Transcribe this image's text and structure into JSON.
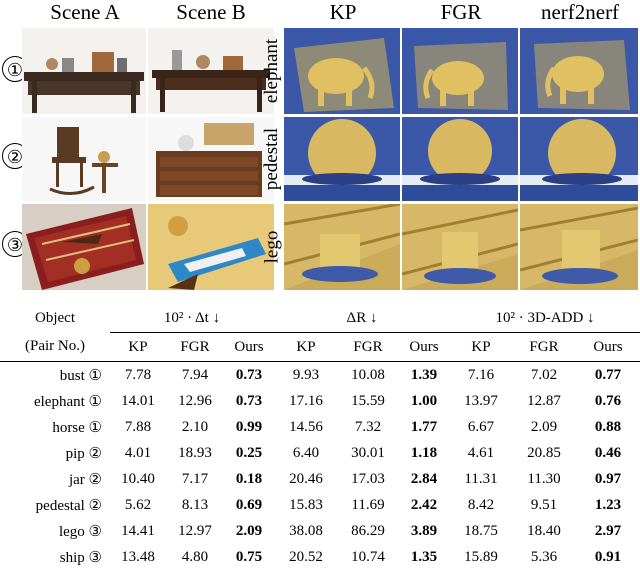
{
  "headers": {
    "scene_a": "Scene A",
    "scene_b": "Scene B",
    "kp": "KP",
    "fgr": "FGR",
    "n2n": "nerf2nerf"
  },
  "row_markers": [
    "①",
    "②",
    "③"
  ],
  "row_labels": [
    "elephant",
    "pedestal",
    "lego"
  ],
  "table": {
    "col_object": "Object",
    "col_pair": "(Pair No.)",
    "group1": "10² · Δt ↓",
    "group2": "ΔR ↓",
    "group3": "10² · 3D-ADD ↓",
    "sub": [
      "KP",
      "FGR",
      "Ours",
      "KP",
      "FGR",
      "Ours",
      "KP",
      "FGR",
      "Ours"
    ],
    "rows": [
      {
        "name": "bust ①",
        "vals": [
          "7.78",
          "7.94",
          "0.73",
          "9.93",
          "10.08",
          "1.39",
          "7.16",
          "7.02",
          "0.77"
        ]
      },
      {
        "name": "elephant ①",
        "vals": [
          "14.01",
          "12.96",
          "0.73",
          "17.16",
          "15.59",
          "1.00",
          "13.97",
          "12.87",
          "0.76"
        ]
      },
      {
        "name": "horse ①",
        "vals": [
          "7.88",
          "2.10",
          "0.99",
          "14.56",
          "7.32",
          "1.77",
          "6.67",
          "2.09",
          "0.88"
        ]
      },
      {
        "name": "pip ②",
        "vals": [
          "4.01",
          "18.93",
          "0.25",
          "6.40",
          "30.01",
          "1.18",
          "4.61",
          "20.85",
          "0.46"
        ]
      },
      {
        "name": "jar ②",
        "vals": [
          "10.40",
          "7.17",
          "0.18",
          "20.46",
          "17.03",
          "2.84",
          "11.31",
          "11.30",
          "0.97"
        ]
      },
      {
        "name": "pedestal ②",
        "vals": [
          "5.62",
          "8.13",
          "0.69",
          "15.83",
          "11.69",
          "2.42",
          "8.42",
          "9.51",
          "1.23"
        ]
      },
      {
        "name": "lego ③",
        "vals": [
          "14.41",
          "12.97",
          "2.09",
          "38.08",
          "86.29",
          "3.89",
          "18.75",
          "18.40",
          "2.97"
        ]
      },
      {
        "name": "ship ③",
        "vals": [
          "13.48",
          "4.80",
          "0.75",
          "20.52",
          "10.74",
          "1.35",
          "15.89",
          "5.36",
          "0.91"
        ]
      }
    ]
  },
  "colors": {
    "blue": "#3b57a8",
    "gold": "#e0c060",
    "wood": "#6b3b1e"
  }
}
